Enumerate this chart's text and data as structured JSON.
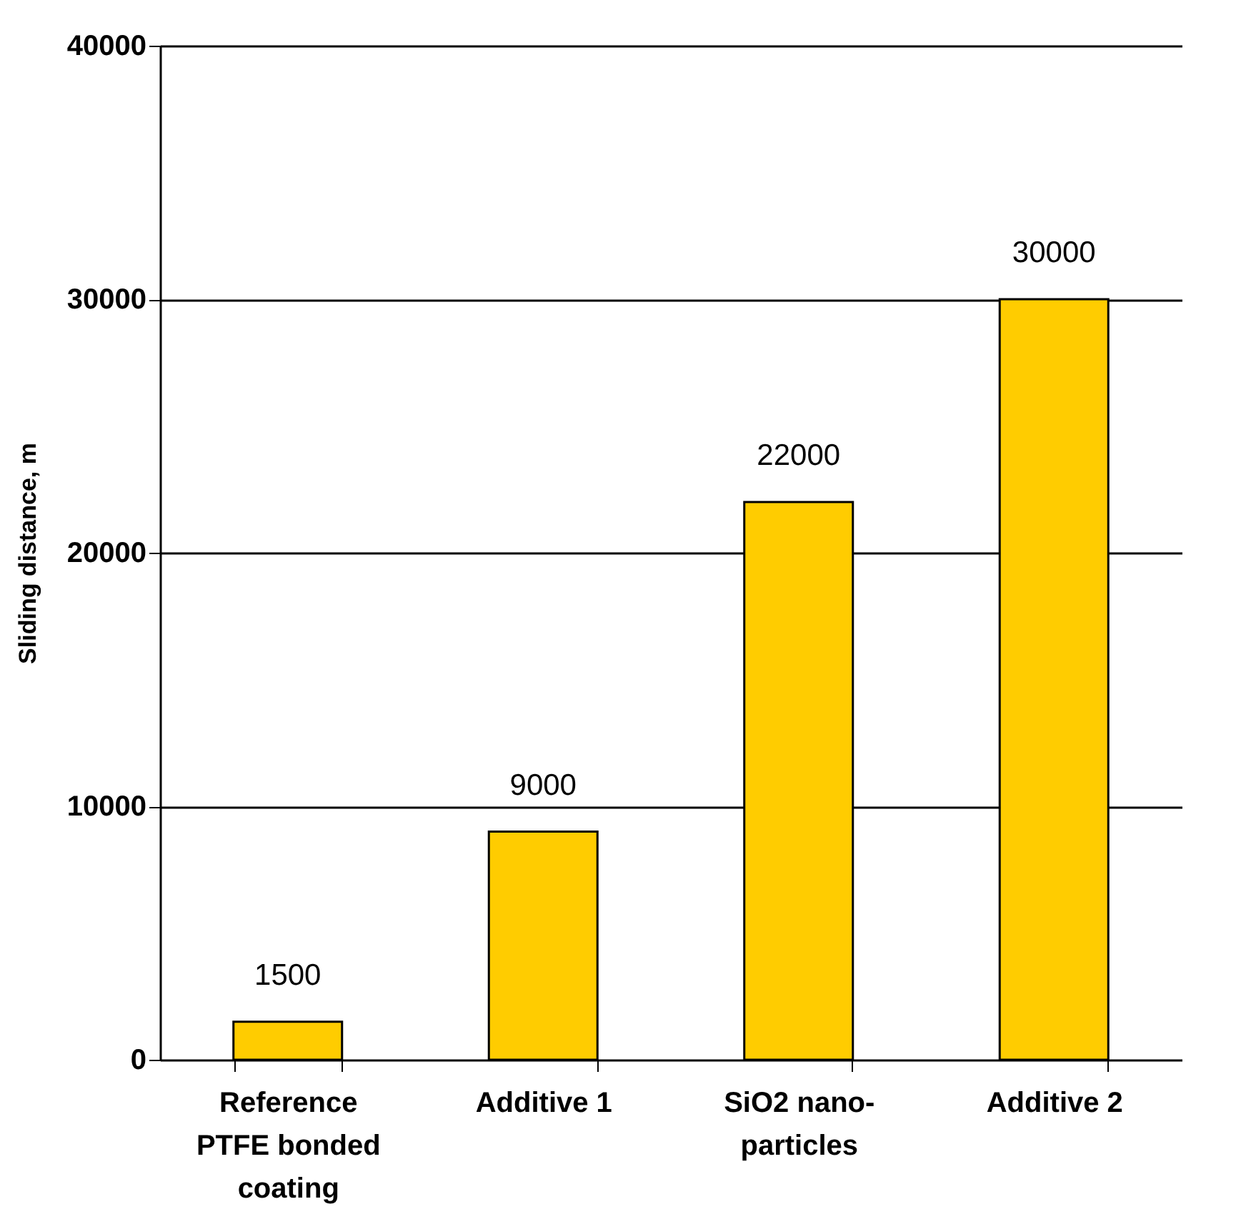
{
  "chart_data": {
    "type": "bar",
    "ylabel": "Sliding distance, m",
    "categories": [
      "Reference\nPTFE bonded\ncoating",
      "Additive 1",
      "SiO2 nano-\nparticles",
      "Additive 2"
    ],
    "values": [
      1500,
      9000,
      22000,
      30000
    ],
    "color": "#ffcc00",
    "ylim": [
      0,
      40000
    ],
    "yticks": [
      0,
      10000,
      20000,
      30000,
      40000
    ],
    "grid": "y",
    "data_labels": true
  }
}
